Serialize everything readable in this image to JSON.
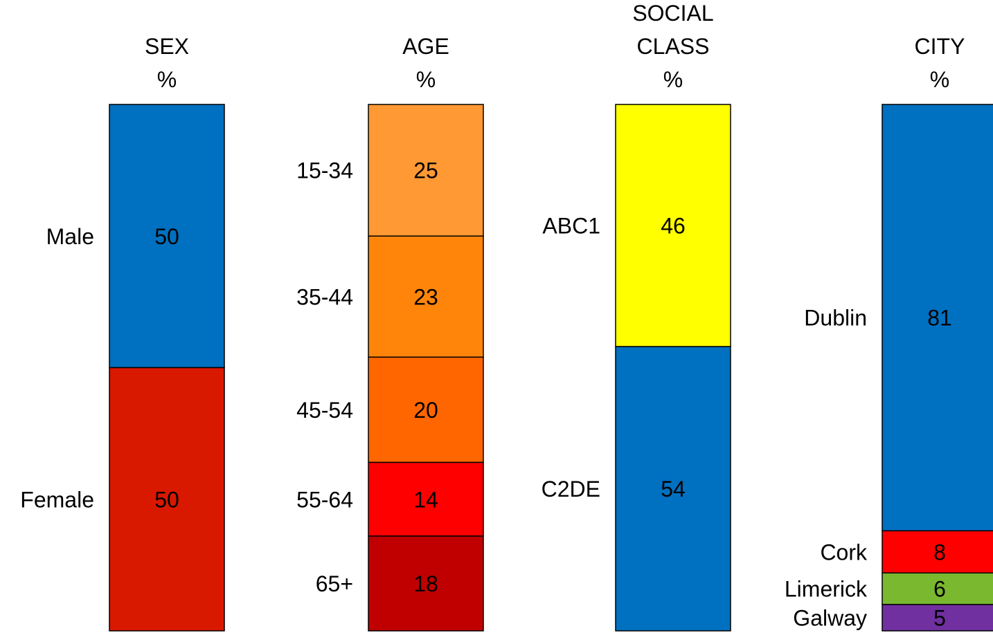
{
  "chart_data": [
    {
      "type": "bar",
      "stacked": true,
      "title_lines": [
        "SEX",
        "%"
      ],
      "segments": [
        {
          "label": "Male",
          "value": 50,
          "value_label": "50",
          "color": "#0070c0"
        },
        {
          "label": "Female",
          "value": 50,
          "value_label": "50",
          "color": "#d91800"
        }
      ]
    },
    {
      "type": "bar",
      "stacked": true,
      "title_lines": [
        "AGE",
        "%"
      ],
      "segments": [
        {
          "label": "15-34",
          "value": 25,
          "value_label": "25",
          "color": "#ff9933"
        },
        {
          "label": "35-44",
          "value": 23,
          "value_label": "23",
          "color": "#ff850a"
        },
        {
          "label": "45-54",
          "value": 20,
          "value_label": "20",
          "color": "#ff6600"
        },
        {
          "label": "55-64",
          "value": 14,
          "value_label": "14",
          "color": "#ff0000"
        },
        {
          "label": "65+",
          "value": 18,
          "value_label": "18",
          "color": "#c00000"
        }
      ]
    },
    {
      "type": "bar",
      "stacked": true,
      "title_lines": [
        "SOCIAL",
        "CLASS",
        "%"
      ],
      "segments": [
        {
          "label": "ABC1",
          "value": 46,
          "value_label": "46",
          "color": "#ffff00"
        },
        {
          "label": "C2DE",
          "value": 54,
          "value_label": "54",
          "color": "#0070c0"
        }
      ]
    },
    {
      "type": "bar",
      "stacked": true,
      "title_lines": [
        "CITY",
        "%"
      ],
      "segments": [
        {
          "label": "Dublin",
          "value": 81,
          "value_label": "81",
          "color": "#0070c0"
        },
        {
          "label": "Cork",
          "value": 8,
          "value_label": "8",
          "color": "#ff0000"
        },
        {
          "label": "Limerick",
          "value": 6,
          "value_label": "6",
          "color": "#7ab830"
        },
        {
          "label": "Galway",
          "value": 5,
          "value_label": "5",
          "color": "#7030a0"
        }
      ]
    }
  ]
}
